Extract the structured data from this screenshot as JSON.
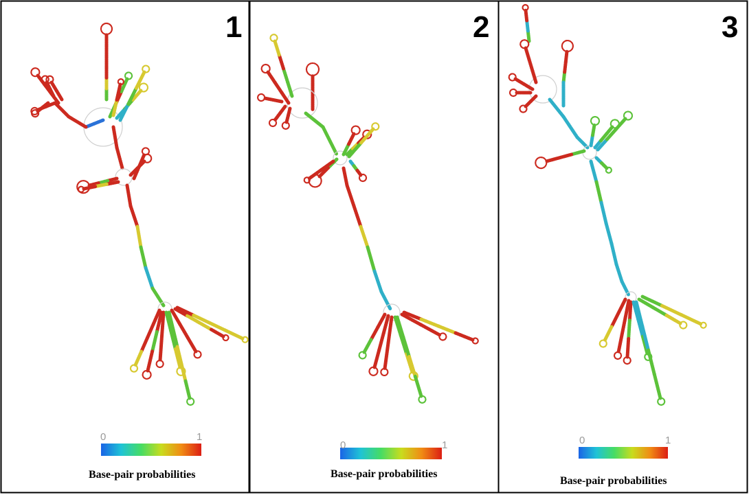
{
  "figure": {
    "panels": [
      {
        "label": "1",
        "scale_min": "0",
        "scale_max": "1",
        "legend_title": "Base-pair probabilities"
      },
      {
        "label": "2",
        "scale_min": "0",
        "scale_max": "1",
        "legend_title": "Base-pair probabilities"
      },
      {
        "label": "3",
        "scale_min": "0",
        "scale_max": "1",
        "legend_title": "Base-pair probabilities"
      }
    ],
    "colorscale": [
      "#1a64e6",
      "#1fc3d6",
      "#46dc64",
      "#c8dc1e",
      "#f08c14",
      "#dc1e14"
    ],
    "colors": {
      "red": "#cc2a1f",
      "green": "#5cc23a",
      "yellow": "#d7c930",
      "cyan": "#2fb0c8",
      "blue": "#2a72d8"
    }
  }
}
